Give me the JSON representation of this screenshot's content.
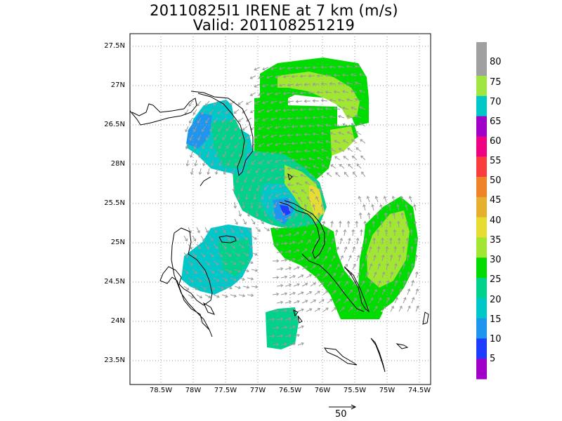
{
  "title": {
    "line1": "20110825I1 IRENE at 7 km (m/s)",
    "line2": "Valid: 201108251219"
  },
  "map": {
    "lat_labels": [
      "27.5N",
      "27N",
      "26.5N",
      "28N",
      "25.5N",
      "25N",
      "24.5N",
      "24N",
      "23.5N"
    ],
    "lon_labels": [
      "78.5W",
      "78W",
      "77.5W",
      "77W",
      "76.5W",
      "76W",
      "75.5W",
      "75W",
      "74.5W"
    ],
    "field": "wind speed",
    "units": "m/s"
  },
  "colorbar": {
    "labels": [
      "80",
      "75",
      "70",
      "65",
      "60",
      "55",
      "50",
      "45",
      "40",
      "35",
      "30",
      "25",
      "20",
      "15",
      "10",
      "5"
    ],
    "colors": [
      "#a0a0a0",
      "#a0e640",
      "#00c8c8",
      "#a000c8",
      "#f00082",
      "#fa3c3c",
      "#f08228",
      "#e6af2d",
      "#e6dc32",
      "#a0e632",
      "#00dc00",
      "#00d28c",
      "#00c8c8",
      "#1e96f0",
      "#1e3cff",
      "#a000c8"
    ]
  },
  "reference_vector": {
    "label": "50"
  }
}
